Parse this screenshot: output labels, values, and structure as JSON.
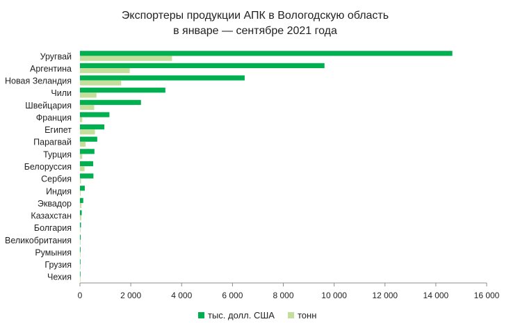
{
  "chart_data": {
    "type": "bar",
    "orientation": "horizontal",
    "title_lines": [
      "Экспортеры продукции АПК в Вологодскую область",
      "в январе — сентябре 2021 года"
    ],
    "categories": [
      "Уругвай",
      "Аргентина",
      "Новая Зеландия",
      "Чили",
      "Швейцария",
      "Франция",
      "Египет",
      "Парагвай",
      "Турция",
      "Белоруссия",
      "Сербия",
      "Индия",
      "Эквадор",
      "Казахстан",
      "Болгария",
      "Великобритания",
      "Румыния",
      "Грузия",
      "Чехия"
    ],
    "series": [
      {
        "name": "тыс. долл. США",
        "color": "#00b050",
        "values": [
          14650,
          9620,
          6480,
          3360,
          2400,
          1160,
          960,
          680,
          570,
          520,
          530,
          190,
          130,
          70,
          40,
          30,
          25,
          20,
          15
        ]
      },
      {
        "name": "тонн",
        "color": "#c4df9b",
        "values": [
          3620,
          1960,
          1620,
          650,
          560,
          90,
          590,
          220,
          90,
          180,
          40,
          30,
          60,
          50,
          10,
          20,
          10,
          10,
          5
        ]
      }
    ],
    "xlim": [
      0,
      16000
    ],
    "xticks": [
      0,
      2000,
      4000,
      6000,
      8000,
      10000,
      12000,
      14000,
      16000
    ],
    "xtick_labels": [
      "0",
      "2 000",
      "4 000",
      "6 000",
      "8 000",
      "10 000",
      "12 000",
      "14 000",
      "16 000"
    ],
    "xlabel": "",
    "ylabel": "",
    "grid": false,
    "legend_position": "bottom"
  }
}
